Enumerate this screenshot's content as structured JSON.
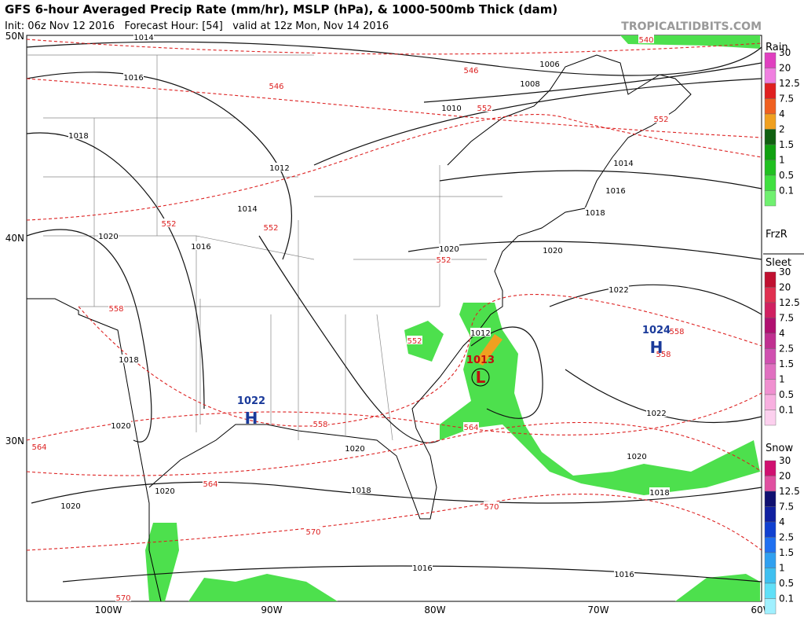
{
  "header": {
    "title": "GFS 6-hour Averaged Precip Rate (mm/hr), MSLP (hPa), & 1000-500mb Thick (dam)",
    "subtitle": "Init: 06z Nov 12 2016   Forecast Hour: [54]   valid at 12z Mon, Nov 14 2016",
    "site": "TROPICALTIDBITS.COM"
  },
  "lat_labels": [
    "50N",
    "40N",
    "30N"
  ],
  "lon_labels": [
    "100W",
    "90W",
    "80W",
    "70W",
    "60W"
  ],
  "isobar_labels": [
    "1014",
    "1016",
    "1018",
    "1020",
    "1016",
    "1014",
    "1012",
    "1010",
    "1008",
    "1006",
    "1014",
    "1016",
    "1018",
    "1020",
    "1022",
    "1022",
    "1020",
    "1018",
    "1016",
    "1016",
    "1018",
    "1020",
    "1020",
    "1020",
    "1018",
    "1020",
    "1012",
    "1020"
  ],
  "thickness_labels": [
    "540",
    "546",
    "546",
    "552",
    "552",
    "552",
    "552",
    "552",
    "552",
    "558",
    "558",
    "558",
    "558",
    "564",
    "564",
    "564",
    "570",
    "570",
    "570"
  ],
  "pressure_centers": [
    {
      "value": "1022",
      "letter": "H"
    },
    {
      "value": "1024",
      "letter": "H"
    },
    {
      "value": "1013",
      "letter": "L"
    }
  ],
  "legends": [
    {
      "title": "Rain",
      "levels": [
        "30",
        "20",
        "12.5",
        "7.5",
        "4",
        "2",
        "1.5",
        "1",
        "0.5",
        "0.1"
      ],
      "colors": [
        "#e040c0",
        "#f080e0",
        "#e02020",
        "#f06020",
        "#f0a020",
        "#106010",
        "#10a010",
        "#20c020",
        "#40e040",
        "#70f070"
      ]
    },
    {
      "title": "FrzR",
      "subtitle": "Sleet",
      "levels": [
        "30",
        "20",
        "12.5",
        "7.5",
        "4",
        "2.5",
        "1.5",
        "1",
        "0.5",
        "0.1"
      ],
      "colors": [
        "#c01030",
        "#e03050",
        "#d02060",
        "#b01070",
        "#c03090",
        "#d050b0",
        "#e070c0",
        "#f090d0",
        "#f8b0e0",
        "#fcd0ee"
      ]
    },
    {
      "title": "Snow",
      "levels": [
        "30",
        "20",
        "12.5",
        "7.5",
        "4",
        "2.5",
        "1.5",
        "1",
        "0.5",
        "0.1"
      ],
      "colors": [
        "#d01070",
        "#e050a0",
        "#101070",
        "#1020a0",
        "#1040d0",
        "#2070f0",
        "#30a0f0",
        "#40c0f0",
        "#60e0f8",
        "#a0f0ff"
      ]
    }
  ]
}
